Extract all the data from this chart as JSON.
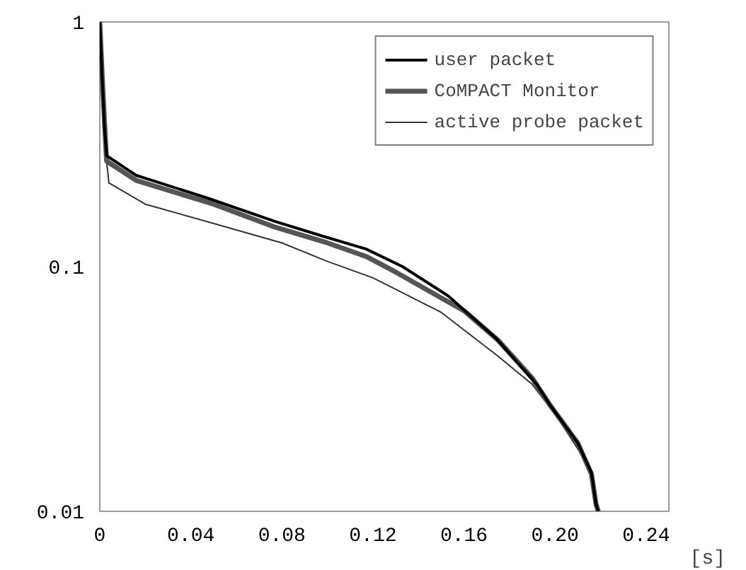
{
  "chart_data": {
    "type": "line",
    "xlabel": "[s]",
    "log": "y",
    "grid": false,
    "legend": "top right",
    "line_style": "solid",
    "xlim": [
      0,
      0.25
    ],
    "ylim": [
      0.01,
      1
    ],
    "xticks": [
      0,
      0.04,
      0.08,
      0.12,
      0.16,
      {
        "value": 0.2,
        "label": "0.20"
      },
      0.24
    ],
    "yticks": [
      0.01,
      0.1,
      1
    ],
    "series": [
      {
        "name": "user packet",
        "color": "#000000",
        "x": [
          0,
          0.001,
          0.002,
          0.003,
          0.016,
          0.047,
          0.077,
          0.097,
          0.117,
          0.133,
          0.153,
          0.174,
          0.192,
          0.198,
          0.21,
          0.216,
          0.218,
          0.219
        ],
        "values": [
          1,
          0.6,
          0.38,
          0.284,
          0.236,
          0.191,
          0.153,
          0.134,
          0.118,
          0.1,
          0.076,
          0.051,
          0.033,
          0.027,
          0.019,
          0.0144,
          0.0107,
          0.01
        ]
      },
      {
        "name": "CoMPACT Monitor",
        "color": "#555555",
        "x": [
          0,
          0.001,
          0.002,
          0.003,
          0.016,
          0.05,
          0.077,
          0.1,
          0.117,
          0.13,
          0.16,
          0.175,
          0.19,
          0.198,
          0.21,
          0.216,
          0.218,
          0.219
        ],
        "values": [
          1,
          0.62,
          0.4,
          0.27,
          0.225,
          0.18,
          0.145,
          0.125,
          0.11,
          0.095,
          0.066,
          0.05,
          0.035,
          0.027,
          0.019,
          0.0142,
          0.0107,
          0.01
        ]
      },
      {
        "name": "active probe packet",
        "color": "#333333",
        "x": [
          0,
          0.001,
          0.002,
          0.004,
          0.02,
          0.05,
          0.08,
          0.1,
          0.12,
          0.15,
          0.175,
          0.19,
          0.2,
          0.21,
          0.216,
          0.218,
          0.219
        ],
        "values": [
          1,
          0.55,
          0.33,
          0.22,
          0.18,
          0.15,
          0.125,
          0.105,
          0.09,
          0.065,
          0.043,
          0.033,
          0.025,
          0.018,
          0.0145,
          0.011,
          0.01
        ]
      }
    ]
  }
}
